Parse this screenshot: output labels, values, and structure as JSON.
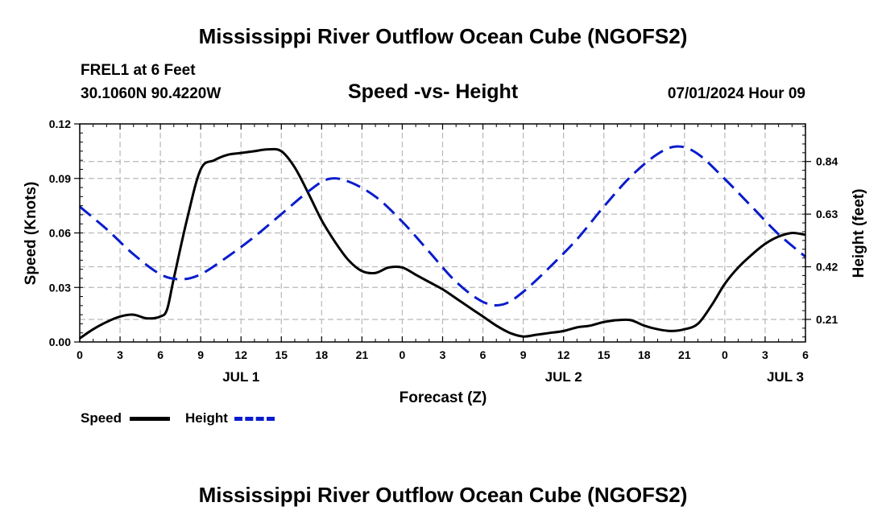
{
  "header": {
    "title": "Mississippi River Outflow Ocean Cube (NGOFS2)",
    "station": "FREL1 at 6 Feet",
    "coords": "30.1060N  90.4220W",
    "subtitle": "Speed -vs- Height",
    "datetime": "07/01/2024 Hour 09"
  },
  "footer": {
    "title": "Mississippi River Outflow Ocean Cube (NGOFS2)"
  },
  "legend": {
    "speed_label": "Speed",
    "height_label": "Height",
    "speed_color": "#000000",
    "height_color": "#0a1ccc"
  },
  "chart_data": {
    "type": "line",
    "title": "Speed -vs- Height",
    "xlabel": "Forecast (Z)",
    "ylabel": "Speed (Knots)",
    "y2label": "Height (feet)",
    "xlim": [
      0,
      54
    ],
    "ylim": [
      0,
      0.12
    ],
    "y2lim": [
      0.12,
      0.99
    ],
    "grid": true,
    "x_ticks": [
      0,
      3,
      6,
      9,
      12,
      15,
      18,
      21,
      24,
      27,
      30,
      33,
      36,
      39,
      42,
      45,
      48,
      51,
      54
    ],
    "x_tick_labels": [
      "0",
      "3",
      "6",
      "9",
      "12",
      "15",
      "18",
      "21",
      "0",
      "3",
      "6",
      "9",
      "12",
      "15",
      "18",
      "21",
      "0",
      "3",
      "6"
    ],
    "y_ticks": [
      0,
      0.03,
      0.06,
      0.09,
      0.12
    ],
    "y_tick_labels": [
      "0.00",
      "0.03",
      "0.06",
      "0.09",
      "0.12"
    ],
    "y2_ticks": [
      0.21,
      0.42,
      0.63,
      0.84
    ],
    "y2_tick_labels": [
      "0.21",
      "0.42",
      "0.63",
      "0.84"
    ],
    "day_labels": [
      {
        "x": 12,
        "label": "JUL 1"
      },
      {
        "x": 36,
        "label": "JUL 2"
      },
      {
        "x": 52.5,
        "label": "JUL 3"
      }
    ],
    "series": [
      {
        "name": "Speed",
        "axis": "left",
        "x": [
          0,
          1,
          2,
          3,
          4,
          5,
          6,
          6.5,
          7,
          8,
          9,
          10,
          11,
          12,
          13,
          14,
          15,
          16,
          17,
          18,
          19,
          20,
          21,
          22,
          23,
          24,
          25,
          26,
          27,
          28,
          29,
          30,
          31,
          32,
          33,
          34,
          35,
          36,
          37,
          38,
          39,
          40,
          41,
          42,
          43,
          44,
          45,
          46,
          47,
          48,
          49,
          50,
          51,
          52,
          53,
          54
        ],
        "values": [
          0.002,
          0.007,
          0.011,
          0.014,
          0.015,
          0.013,
          0.014,
          0.018,
          0.035,
          0.068,
          0.095,
          0.1,
          0.103,
          0.104,
          0.105,
          0.106,
          0.105,
          0.096,
          0.082,
          0.067,
          0.055,
          0.045,
          0.039,
          0.038,
          0.041,
          0.041,
          0.037,
          0.033,
          0.029,
          0.024,
          0.019,
          0.014,
          0.009,
          0.005,
          0.003,
          0.004,
          0.005,
          0.006,
          0.008,
          0.009,
          0.011,
          0.012,
          0.012,
          0.009,
          0.007,
          0.006,
          0.007,
          0.01,
          0.02,
          0.032,
          0.041,
          0.048,
          0.054,
          0.058,
          0.06,
          0.059
        ]
      },
      {
        "name": "Height",
        "axis": "right",
        "x": [
          0,
          2,
          4,
          6,
          7.5,
          9,
          11,
          13,
          15,
          17,
          18.5,
          20,
          22,
          24,
          26,
          28,
          30,
          31.5,
          33,
          35,
          37,
          39,
          41,
          43,
          44.5,
          46,
          48,
          50,
          52,
          54
        ],
        "values": [
          0.66,
          0.57,
          0.47,
          0.39,
          0.37,
          0.39,
          0.46,
          0.54,
          0.63,
          0.72,
          0.77,
          0.76,
          0.7,
          0.6,
          0.48,
          0.36,
          0.28,
          0.27,
          0.32,
          0.42,
          0.53,
          0.66,
          0.78,
          0.87,
          0.9,
          0.87,
          0.77,
          0.66,
          0.55,
          0.46
        ]
      }
    ]
  }
}
